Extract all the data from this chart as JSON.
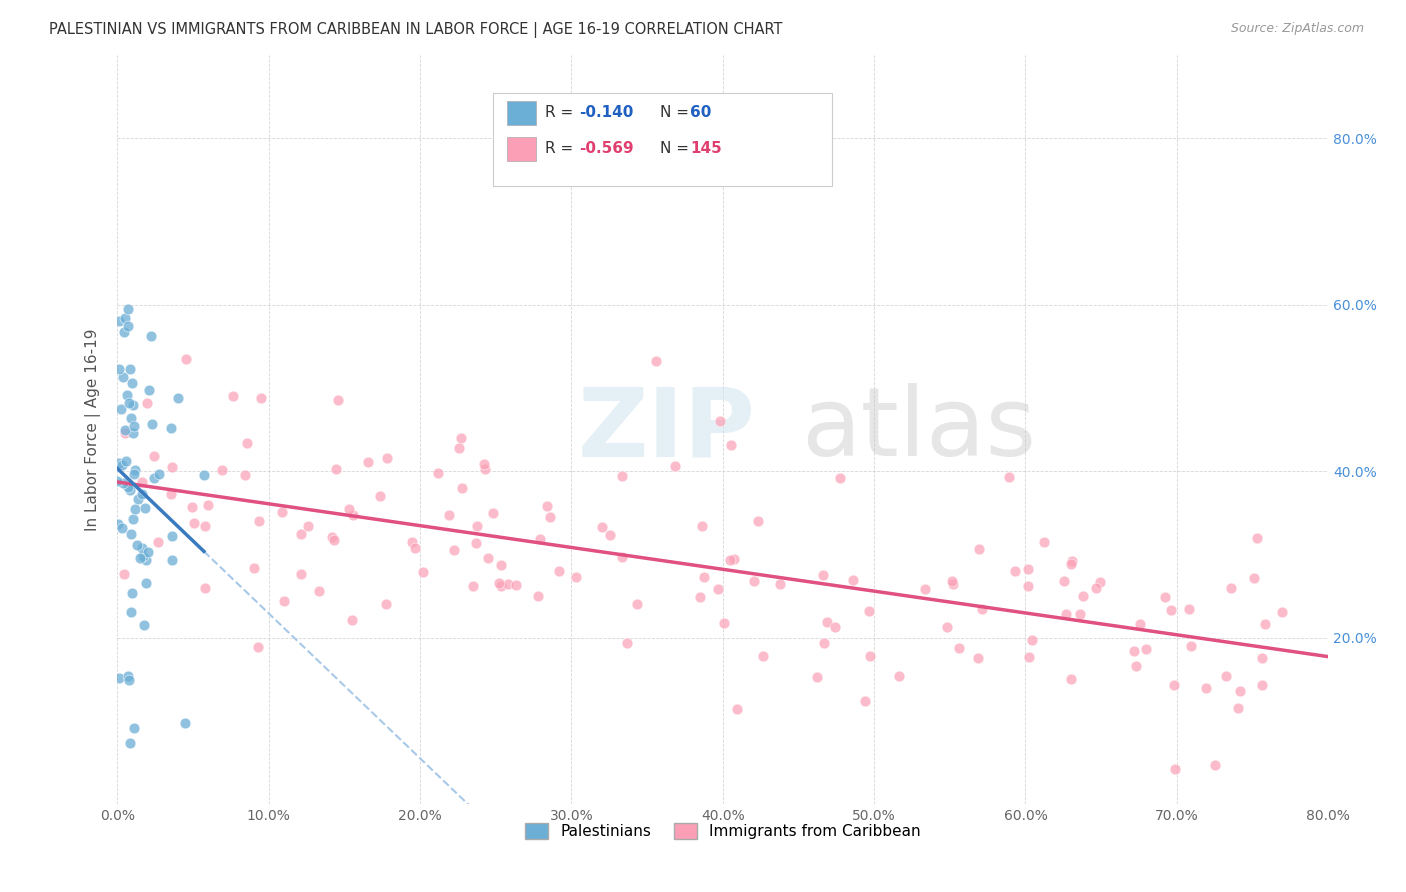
{
  "title": "PALESTINIAN VS IMMIGRANTS FROM CARIBBEAN IN LABOR FORCE | AGE 16-19 CORRELATION CHART",
  "source": "Source: ZipAtlas.com",
  "ylabel": "In Labor Force | Age 16-19",
  "xlim": [
    0.0,
    0.8
  ],
  "ylim": [
    0.0,
    0.9
  ],
  "color_blue": "#6baed6",
  "color_pink": "#fa9fb5",
  "trendline_blue_solid": "#3a7abf",
  "trendline_pink": "#e05080",
  "trendline_dashed": "#a8c8e8",
  "background_color": "#ffffff",
  "grid_color": "#bbbbbb",
  "watermark_zip_color": "#d0e4f0",
  "watermark_atlas_color": "#c8c8c8"
}
